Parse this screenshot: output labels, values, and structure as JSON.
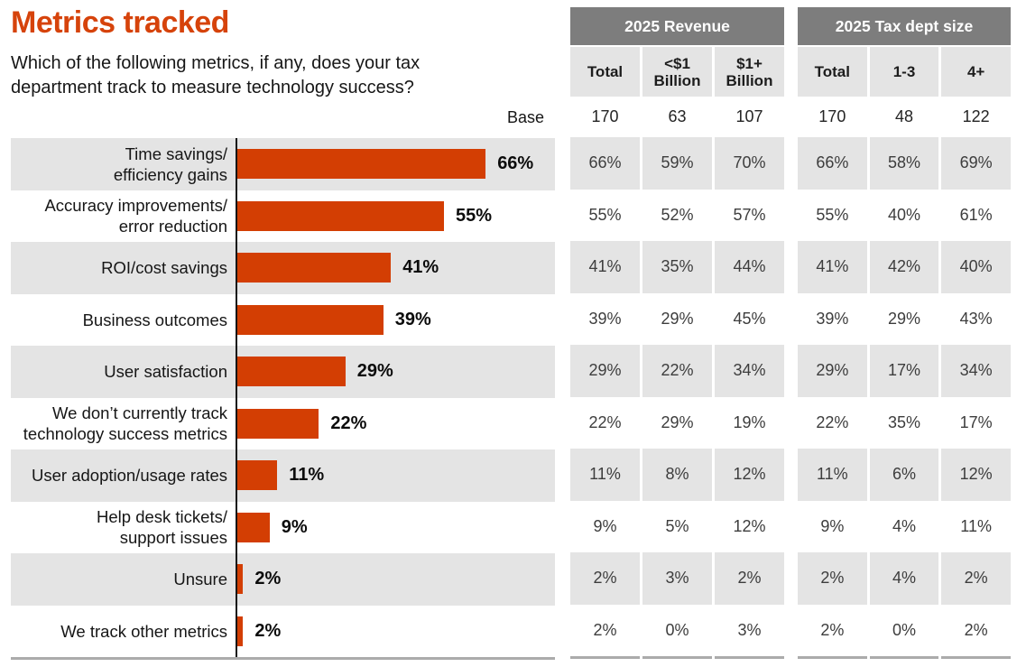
{
  "header": {
    "title": "Metrics tracked",
    "question": "Which of the following metrics, if any, does your tax department track to measure technology success?",
    "base_label": "Base"
  },
  "colors": {
    "accent_bar": "#d33e03",
    "title_orange": "#d6430b",
    "row_alternate": "#e4e4e4",
    "table_header_bg": "#7d7d7d",
    "table_header_text": "#ffffff",
    "bottom_border": "#ababab"
  },
  "chart_data": {
    "type": "bar",
    "orientation": "horizontal",
    "unit": "%",
    "title": "Metrics tracked",
    "xlabel": "",
    "ylabel": "",
    "xlim": [
      0,
      84
    ],
    "grid": false,
    "legend": "none",
    "categories": [
      "Time savings/\nefficiency gains",
      "Accuracy improvements/\nerror reduction",
      "ROI/cost savings",
      "Business outcomes",
      "User satisfaction",
      "We don’t currently track\ntechnology success metrics",
      "User adoption/usage rates",
      "Help desk tickets/\nsupport issues",
      "Unsure",
      "We track other metrics"
    ],
    "values": [
      66,
      55,
      41,
      39,
      29,
      22,
      11,
      9,
      2,
      2
    ]
  },
  "tables": [
    {
      "title": "2025 Revenue",
      "columns": [
        "Total",
        "<$1 Billion",
        "$1+ Billion"
      ],
      "base": [
        "170",
        "63",
        "107"
      ],
      "rows": [
        [
          "66%",
          "59%",
          "70%"
        ],
        [
          "55%",
          "52%",
          "57%"
        ],
        [
          "41%",
          "35%",
          "44%"
        ],
        [
          "39%",
          "29%",
          "45%"
        ],
        [
          "29%",
          "22%",
          "34%"
        ],
        [
          "22%",
          "29%",
          "19%"
        ],
        [
          "11%",
          "8%",
          "12%"
        ],
        [
          "9%",
          "5%",
          "12%"
        ],
        [
          "2%",
          "3%",
          "2%"
        ],
        [
          "2%",
          "0%",
          "3%"
        ]
      ]
    },
    {
      "title": "2025 Tax dept size",
      "columns": [
        "Total",
        "1-3",
        "4+"
      ],
      "base": [
        "170",
        "48",
        "122"
      ],
      "rows": [
        [
          "66%",
          "58%",
          "69%"
        ],
        [
          "55%",
          "40%",
          "61%"
        ],
        [
          "41%",
          "42%",
          "40%"
        ],
        [
          "39%",
          "29%",
          "43%"
        ],
        [
          "29%",
          "17%",
          "34%"
        ],
        [
          "22%",
          "35%",
          "17%"
        ],
        [
          "11%",
          "6%",
          "12%"
        ],
        [
          "9%",
          "4%",
          "11%"
        ],
        [
          "2%",
          "4%",
          "2%"
        ],
        [
          "2%",
          "0%",
          "2%"
        ]
      ]
    }
  ]
}
